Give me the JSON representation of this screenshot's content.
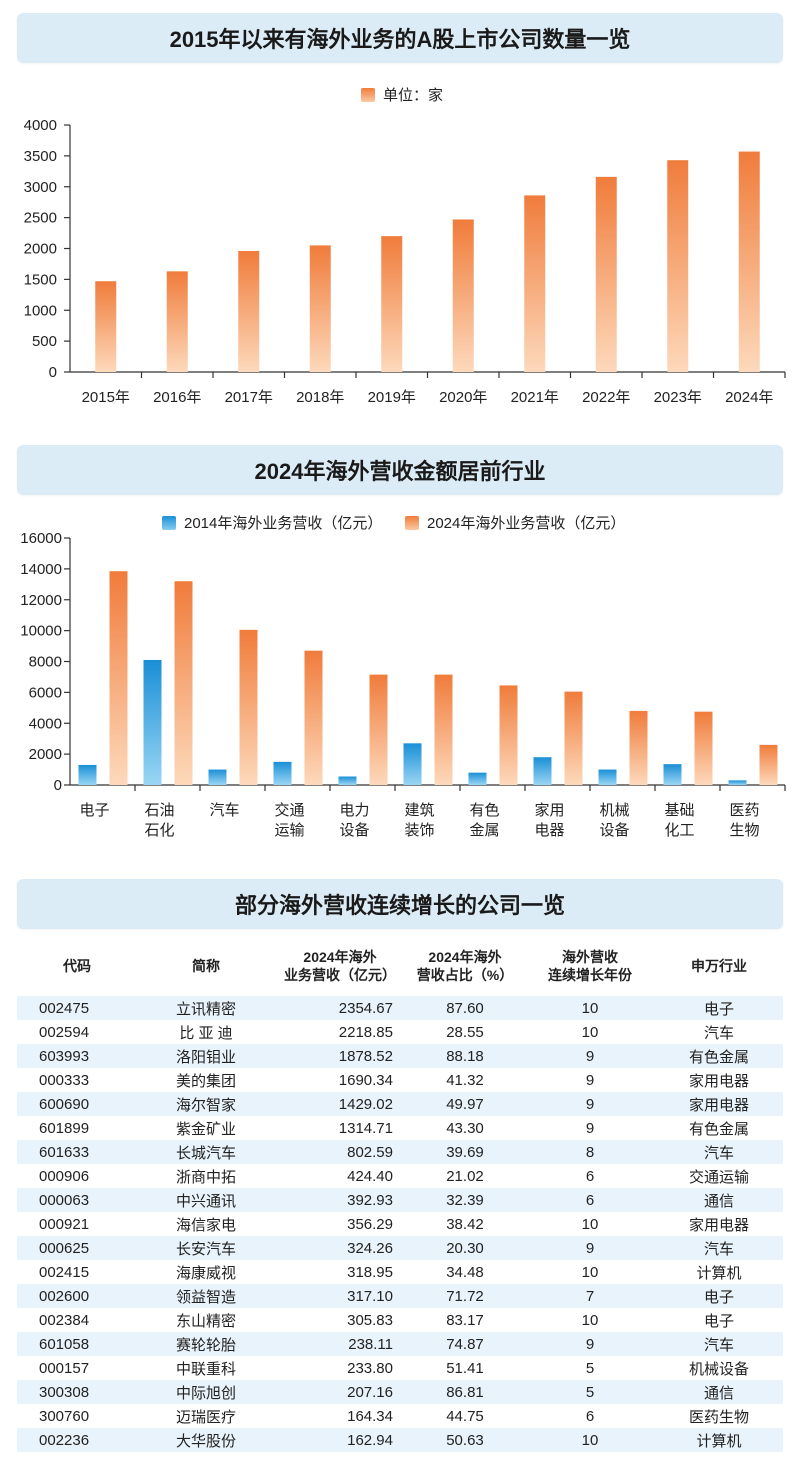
{
  "chart_data": [
    {
      "type": "bar",
      "title": "2015年以来有海外业务的A股上市公司数量一览",
      "legend": [
        "单位：家"
      ],
      "categories": [
        "2015年",
        "2016年",
        "2017年",
        "2018年",
        "2019年",
        "2020年",
        "2021年",
        "2022年",
        "2023年",
        "2024年"
      ],
      "values": [
        1470,
        1630,
        1960,
        2050,
        2200,
        2470,
        2860,
        3160,
        3430,
        3570
      ],
      "yticks": [
        "4000",
        "3500",
        "3000",
        "2500",
        "2000",
        "1500",
        "1000",
        "500",
        "0"
      ],
      "ylim": [
        0,
        4000
      ]
    },
    {
      "type": "bar",
      "title": "2024年海外营收金额居前行业",
      "series": [
        {
          "name": "2014年海外业务营收（亿元）",
          "values": [
            1300,
            8100,
            1000,
            1500,
            550,
            2700,
            800,
            1800,
            1000,
            1350,
            300
          ]
        },
        {
          "name": "2024年海外业务营收（亿元）",
          "values": [
            13850,
            13200,
            10050,
            8700,
            7150,
            7150,
            6450,
            6050,
            4800,
            4750,
            2600
          ]
        }
      ],
      "categories": [
        [
          "电子"
        ],
        [
          "石油",
          "石化"
        ],
        [
          "汽车"
        ],
        [
          "交通",
          "运输"
        ],
        [
          "电力",
          "设备"
        ],
        [
          "建筑",
          "装饰"
        ],
        [
          "有色",
          "金属"
        ],
        [
          "家用",
          "电器"
        ],
        [
          "机械",
          "设备"
        ],
        [
          "基础",
          "化工"
        ],
        [
          "医药",
          "生物"
        ]
      ],
      "yticks": [
        "16000",
        "14000",
        "12000",
        "10000",
        "8000",
        "6000",
        "4000",
        "2000",
        "0"
      ],
      "ylim": [
        0,
        16000
      ]
    }
  ],
  "colors": {
    "orange": "#f07c3b",
    "orange_light": "#fbd0ac",
    "blue": "#1a8fd6",
    "blue_light": "#8dd0f2",
    "banner": "#dcecf6"
  },
  "table": {
    "title": "部分海外营收连续增长的公司一览",
    "headers": [
      "代码",
      "简称",
      "2024年海外\n业务营收（亿元）",
      "2024年海外\n营收占比（%）",
      "海外营收\n连续增长年份",
      "申万行业"
    ],
    "rows": [
      [
        "002475",
        "立讯精密",
        "2354.67",
        "87.60",
        "10",
        "电子"
      ],
      [
        "002594",
        "比 亚 迪",
        "2218.85",
        "28.55",
        "10",
        "汽车"
      ],
      [
        "603993",
        "洛阳钼业",
        "1878.52",
        "88.18",
        "9",
        "有色金属"
      ],
      [
        "000333",
        "美的集团",
        "1690.34",
        "41.32",
        "9",
        "家用电器"
      ],
      [
        "600690",
        "海尔智家",
        "1429.02",
        "49.97",
        "9",
        "家用电器"
      ],
      [
        "601899",
        "紫金矿业",
        "1314.71",
        "43.30",
        "9",
        "有色金属"
      ],
      [
        "601633",
        "长城汽车",
        "802.59",
        "39.69",
        "8",
        "汽车"
      ],
      [
        "000906",
        "浙商中拓",
        "424.40",
        "21.02",
        "6",
        "交通运输"
      ],
      [
        "000063",
        "中兴通讯",
        "392.93",
        "32.39",
        "6",
        "通信"
      ],
      [
        "000921",
        "海信家电",
        "356.29",
        "38.42",
        "10",
        "家用电器"
      ],
      [
        "000625",
        "长安汽车",
        "324.26",
        "20.30",
        "9",
        "汽车"
      ],
      [
        "002415",
        "海康威视",
        "318.95",
        "34.48",
        "10",
        "计算机"
      ],
      [
        "002600",
        "领益智造",
        "317.10",
        "71.72",
        "7",
        "电子"
      ],
      [
        "002384",
        "东山精密",
        "305.83",
        "83.17",
        "10",
        "电子"
      ],
      [
        "601058",
        "赛轮轮胎",
        "238.11",
        "74.87",
        "9",
        "汽车"
      ],
      [
        "000157",
        "中联重科",
        "233.80",
        "51.41",
        "5",
        "机械设备"
      ],
      [
        "300308",
        "中际旭创",
        "207.16",
        "86.81",
        "5",
        "通信"
      ],
      [
        "300760",
        "迈瑞医疗",
        "164.34",
        "44.75",
        "6",
        "医药生物"
      ],
      [
        "002236",
        "大华股份",
        "162.94",
        "50.63",
        "10",
        "计算机"
      ]
    ]
  }
}
